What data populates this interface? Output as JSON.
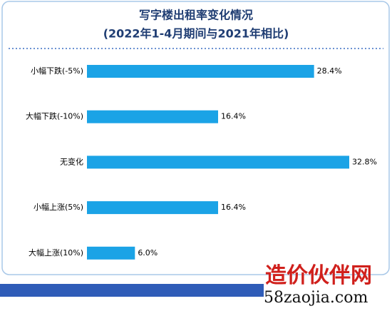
{
  "chart_data": {
    "type": "bar",
    "orientation": "horizontal",
    "title": "写字楼出租率变化情况",
    "subtitle": "(2022年1-4月期间与2021年相比)",
    "categories": [
      "小幅下跌(-5%)",
      "大幅下跌(-10%)",
      "无变化",
      "小幅上涨(5%)",
      "大幅上涨(10%)"
    ],
    "values": [
      28.4,
      16.4,
      32.8,
      16.4,
      6.0
    ],
    "value_labels": [
      "28.4%",
      "16.4%",
      "32.8%",
      "16.4%",
      "6.0%"
    ],
    "color": "#1ba3e6"
  },
  "watermark": {
    "name": "造价伙伴网",
    "site": "58zaojia.com"
  }
}
